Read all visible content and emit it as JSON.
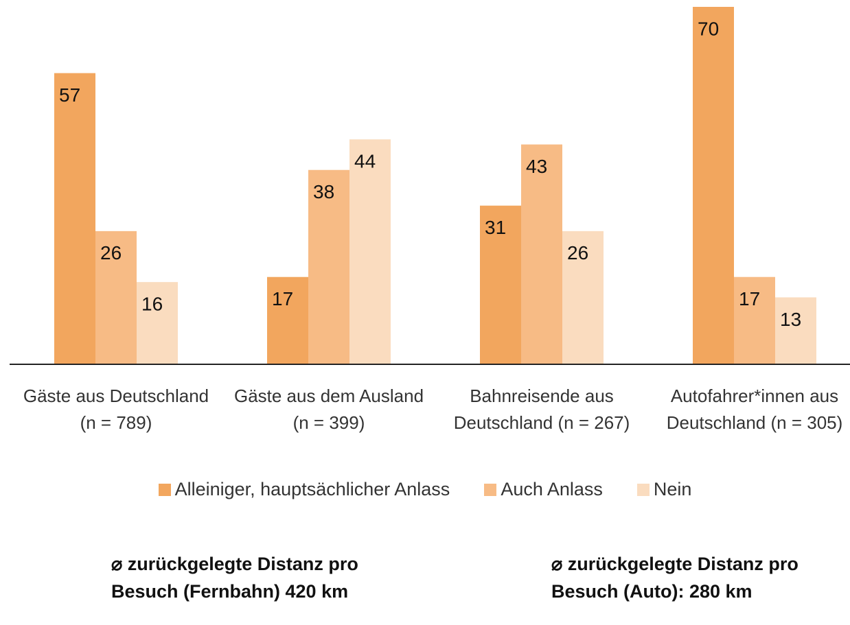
{
  "chart_data": {
    "type": "bar",
    "categories": [
      "Gäste aus Deutschland (n = 789)",
      "Gäste aus dem Ausland (n = 399)",
      "Bahnreisende aus Deutschland (n = 267)",
      "Autofahrer*innen aus Deutschland (n = 305)"
    ],
    "series": [
      {
        "name": "Alleiniger, hauptsächlicher Anlass",
        "color": "#f2a65e",
        "values": [
          57,
          17,
          31,
          70
        ]
      },
      {
        "name": "Auch Anlass",
        "color": "#f7bb85",
        "values": [
          26,
          38,
          43,
          17
        ]
      },
      {
        "name": "Nein",
        "color": "#fadcbf",
        "values": [
          16,
          44,
          26,
          13
        ]
      }
    ],
    "ylim": [
      0,
      70
    ],
    "annotations": [
      "⌀ zurückgelegte Distanz pro Besuch (Fernbahn) 420 km",
      "⌀ zurückgelegte Distanz pro Besuch (Auto): 280 km"
    ]
  }
}
